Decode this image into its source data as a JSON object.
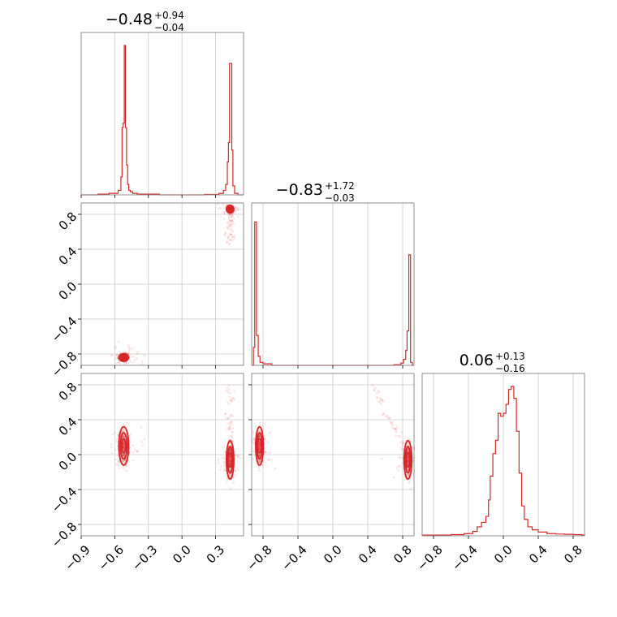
{
  "chart_data": {
    "type": "corner",
    "colors": {
      "series": "#d62728",
      "grid": "#c8c8c8",
      "frame": "#8c8c8c"
    },
    "grid": true,
    "titles": [
      {
        "param": 0,
        "median": "−0.48",
        "plus": "+0.94",
        "minus": "−0.04"
      },
      {
        "param": 1,
        "median": "−0.83",
        "plus": "+1.72",
        "minus": "−0.03"
      },
      {
        "param": 2,
        "median": "0.06",
        "plus": "+0.13",
        "minus": "−0.16"
      }
    ],
    "params": [
      {
        "range": [
          -0.9,
          0.55
        ],
        "ticks": [
          -0.9,
          -0.6,
          -0.3,
          0.0,
          0.3
        ],
        "tick_labels": [
          "−0.9",
          "−0.6",
          "−0.3",
          "0.0",
          "0.3"
        ]
      },
      {
        "range": [
          -0.93,
          0.93
        ],
        "ticks": [
          -0.8,
          -0.4,
          0.0,
          0.4,
          0.8
        ],
        "tick_labels": [
          "−0.8",
          "−0.4",
          "0.0",
          "0.4",
          "0.8"
        ]
      },
      {
        "range": [
          -0.93,
          0.93
        ],
        "ticks": [
          -0.8,
          -0.4,
          0.0,
          0.4,
          0.8
        ],
        "tick_labels": [
          "−0.8",
          "−0.4",
          "0.0",
          "0.4",
          "0.8"
        ]
      }
    ],
    "histograms": [
      {
        "param": 0,
        "bins": [
          [
            -0.9,
            0.0
          ],
          [
            -0.75,
            0.005
          ],
          [
            -0.65,
            0.01
          ],
          [
            -0.57,
            0.03
          ],
          [
            -0.545,
            0.12
          ],
          [
            -0.535,
            0.45
          ],
          [
            -0.525,
            0.48
          ],
          [
            -0.515,
            1.0
          ],
          [
            -0.505,
            0.45
          ],
          [
            -0.495,
            0.2
          ],
          [
            -0.485,
            0.07
          ],
          [
            -0.475,
            0.03
          ],
          [
            -0.46,
            0.02
          ],
          [
            -0.44,
            0.01
          ],
          [
            -0.4,
            0.005
          ],
          [
            -0.3,
            0.005
          ],
          [
            -0.2,
            0.0
          ],
          [
            0.2,
            0.003
          ],
          [
            0.33,
            0.01
          ],
          [
            0.37,
            0.03
          ],
          [
            0.39,
            0.07
          ],
          [
            0.405,
            0.22
          ],
          [
            0.415,
            0.35
          ],
          [
            0.425,
            0.88
          ],
          [
            0.435,
            0.88
          ],
          [
            0.445,
            0.3
          ],
          [
            0.455,
            0.06
          ],
          [
            0.47,
            0.01
          ],
          [
            0.5,
            0.0
          ]
        ]
      },
      {
        "param": 1,
        "bins": [
          [
            -0.93,
            0.0
          ],
          [
            -0.91,
            0.12
          ],
          [
            -0.895,
            0.96
          ],
          [
            -0.875,
            0.2
          ],
          [
            -0.855,
            0.06
          ],
          [
            -0.835,
            0.02
          ],
          [
            -0.8,
            0.01
          ],
          [
            -0.7,
            0.0
          ],
          [
            0.0,
            0.0
          ],
          [
            0.7,
            0.004
          ],
          [
            0.78,
            0.015
          ],
          [
            0.81,
            0.04
          ],
          [
            0.835,
            0.1
          ],
          [
            0.85,
            0.23
          ],
          [
            0.87,
            0.74
          ],
          [
            0.89,
            0.02
          ],
          [
            0.91,
            0.0
          ]
        ]
      },
      {
        "param": 2,
        "bins": [
          [
            -0.93,
            0.005
          ],
          [
            -0.8,
            0.005
          ],
          [
            -0.6,
            0.008
          ],
          [
            -0.45,
            0.015
          ],
          [
            -0.35,
            0.03
          ],
          [
            -0.3,
            0.06
          ],
          [
            -0.25,
            0.09
          ],
          [
            -0.2,
            0.13
          ],
          [
            -0.17,
            0.24
          ],
          [
            -0.15,
            0.4
          ],
          [
            -0.12,
            0.55
          ],
          [
            -0.09,
            0.64
          ],
          [
            -0.06,
            0.82
          ],
          [
            -0.03,
            0.8
          ],
          [
            0.0,
            0.82
          ],
          [
            0.03,
            0.88
          ],
          [
            0.06,
            0.98
          ],
          [
            0.09,
            1.0
          ],
          [
            0.12,
            0.92
          ],
          [
            0.15,
            0.7
          ],
          [
            0.18,
            0.42
          ],
          [
            0.21,
            0.2
          ],
          [
            0.24,
            0.11
          ],
          [
            0.28,
            0.06
          ],
          [
            0.33,
            0.04
          ],
          [
            0.4,
            0.025
          ],
          [
            0.5,
            0.015
          ],
          [
            0.6,
            0.012
          ],
          [
            0.7,
            0.01
          ],
          [
            0.8,
            0.008
          ],
          [
            0.9,
            0.005
          ]
        ]
      }
    ],
    "modes": [
      {
        "p0": -0.52,
        "p1": -0.84,
        "p2": 0.1,
        "sd": [
          0.02,
          0.02,
          0.1
        ]
      },
      {
        "p0": 0.43,
        "p1": 0.86,
        "p2": -0.06,
        "sd": [
          0.015,
          0.02,
          0.1
        ]
      }
    ]
  }
}
